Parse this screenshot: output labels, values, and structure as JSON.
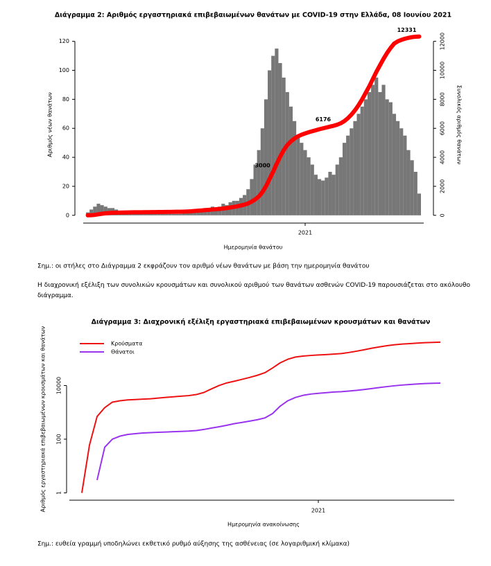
{
  "chart_data": [
    {
      "type": "bar",
      "title": "Διάγραμμα 2: Αριθμός εργαστηριακά επιβεβαιωμένων θανάτων με COVID-19 στην Ελλάδα, 08 Ιουνίου 2021",
      "x_label": "Ημερομηνία θανάτου",
      "y_label": "Αριθμός νέων θανάτων",
      "y2_label": "Συνολικός αριθμός θανάτων",
      "categories": [
        null,
        null,
        null,
        null,
        null,
        null,
        null,
        null,
        null,
        null,
        null,
        null,
        null,
        null,
        null,
        null,
        null,
        null,
        null,
        null,
        null,
        null,
        null,
        null,
        null,
        null,
        null,
        null,
        null,
        null,
        null,
        null,
        null,
        null,
        null,
        null,
        null,
        null,
        null,
        null,
        null,
        null,
        null,
        null,
        null,
        null,
        null,
        null,
        null,
        null,
        null,
        null,
        null,
        null,
        null,
        null,
        null,
        null,
        null,
        null,
        null,
        "2021",
        null,
        null,
        null,
        null,
        null,
        null,
        null,
        null,
        null,
        null,
        null,
        null,
        null,
        null,
        null,
        null,
        null,
        null,
        null,
        null,
        null,
        null,
        null,
        null,
        null,
        null,
        null,
        null,
        null,
        null,
        null,
        null
      ],
      "series": [
        {
          "type": "bar",
          "color": "#777777",
          "values": [
            2,
            4,
            6,
            8,
            7,
            6,
            5,
            5,
            4,
            3,
            3,
            2,
            2,
            2,
            1,
            1,
            1,
            1,
            1,
            1,
            1,
            1,
            1,
            1,
            1,
            1,
            1,
            2,
            2,
            3,
            3,
            3,
            4,
            5,
            4,
            6,
            5,
            6,
            8,
            7,
            9,
            10,
            10,
            12,
            14,
            18,
            25,
            35,
            45,
            60,
            80,
            100,
            110,
            115,
            105,
            95,
            85,
            75,
            65,
            55,
            50,
            45,
            40,
            35,
            28,
            25,
            24,
            26,
            30,
            28,
            35,
            40,
            50,
            55,
            60,
            65,
            70,
            75,
            80,
            85,
            90,
            95,
            85,
            90,
            80,
            78,
            70,
            65,
            60,
            55,
            45,
            38,
            30,
            15
          ]
        },
        {
          "type": "line",
          "axis": "y2",
          "color": "#ff0000",
          "values": [
            0,
            10,
            30,
            70,
            110,
            140,
            160,
            175,
            185,
            190,
            195,
            200,
            205,
            210,
            212,
            215,
            217,
            220,
            222,
            225,
            228,
            230,
            233,
            236,
            240,
            245,
            250,
            255,
            265,
            280,
            300,
            320,
            340,
            360,
            380,
            400,
            420,
            440,
            470,
            500,
            540,
            580,
            620,
            680,
            740,
            820,
            950,
            1100,
            1300,
            1600,
            2000,
            2500,
            3000,
            3550,
            4050,
            4500,
            4850,
            5100,
            5300,
            5450,
            5560,
            5650,
            5730,
            5800,
            5870,
            5940,
            6000,
            6060,
            6120,
            6176,
            6250,
            6350,
            6500,
            6700,
            6950,
            7250,
            7600,
            8000,
            8450,
            8900,
            9400,
            9900,
            10350,
            10800,
            11200,
            11550,
            11850,
            12000,
            12100,
            12180,
            12240,
            12290,
            12320,
            12331
          ],
          "value_labels": [
            null,
            null,
            null,
            null,
            null,
            null,
            null,
            null,
            null,
            null,
            null,
            null,
            null,
            null,
            null,
            null,
            null,
            null,
            null,
            null,
            null,
            null,
            null,
            null,
            null,
            null,
            null,
            null,
            null,
            null,
            null,
            null,
            null,
            null,
            null,
            null,
            null,
            null,
            null,
            null,
            null,
            null,
            null,
            null,
            null,
            null,
            null,
            null,
            null,
            null,
            null,
            null,
            "3000",
            null,
            null,
            null,
            null,
            null,
            null,
            null,
            null,
            null,
            null,
            null,
            null,
            null,
            null,
            null,
            null,
            "6176",
            null,
            null,
            null,
            null,
            null,
            null,
            null,
            null,
            null,
            null,
            null,
            null,
            null,
            null,
            null,
            null,
            null,
            null,
            null,
            null,
            null,
            null,
            null,
            "12331"
          ]
        }
      ],
      "ylim": [
        -2,
        127
      ],
      "yticks": [
        0,
        20,
        40,
        60,
        80,
        100,
        120
      ],
      "y2lim": [
        -200,
        12700
      ],
      "y2ticks": [
        0,
        2000,
        4000,
        6000,
        8000,
        10000,
        12000
      ],
      "grid": false
    },
    {
      "type": "line",
      "title": "Διάγραμμα 3: Διαχρονική εξέλιξη εργαστηριακά επιβεβαιωμένων κρουσμάτων και θανάτων",
      "x_label": "Ημερομηνία ανακοίνωσης",
      "y_label": "Αριθμός εργαστηριακά επιβεβαιωμένων κρουσμάτων και θανάτων",
      "categories": [
        null,
        null,
        null,
        null,
        null,
        null,
        null,
        null,
        null,
        null,
        null,
        null,
        null,
        null,
        null,
        null,
        null,
        null,
        null,
        null,
        null,
        null,
        null,
        null,
        null,
        null,
        null,
        null,
        null,
        null,
        null,
        "2021",
        null,
        null,
        null,
        null,
        null,
        null,
        null,
        null,
        null,
        null,
        null,
        null,
        null,
        null,
        null,
        null
      ],
      "series": [
        {
          "name": "Κρούσματα",
          "color": "#ee1111",
          "values": [
            1,
            60,
            700,
            1500,
            2400,
            2700,
            2900,
            3000,
            3100,
            3200,
            3400,
            3600,
            3800,
            4000,
            4200,
            4600,
            5500,
            7500,
            10000,
            12500,
            14500,
            17000,
            20000,
            24000,
            30000,
            45000,
            70000,
            95000,
            115000,
            125000,
            132000,
            138000,
            142000,
            148000,
            155000,
            170000,
            190000,
            215000,
            245000,
            275000,
            305000,
            330000,
            350000,
            365000,
            380000,
            395000,
            405000,
            412000
          ]
        },
        {
          "name": "Θάνατοι",
          "color": "#9933ee",
          "values": [
            null,
            null,
            3,
            50,
            100,
            130,
            150,
            160,
            170,
            175,
            180,
            185,
            190,
            195,
            200,
            210,
            230,
            260,
            290,
            330,
            380,
            420,
            470,
            530,
            620,
            900,
            1700,
            2700,
            3600,
            4300,
            4800,
            5100,
            5400,
            5700,
            5900,
            6200,
            6600,
            7100,
            7700,
            8400,
            9100,
            9800,
            10400,
            10900,
            11400,
            11800,
            12100,
            12331
          ]
        }
      ],
      "ylog": true,
      "ylim": [
        0.6,
        1000000
      ],
      "yticks": [
        1,
        100,
        10000
      ],
      "legend": "top-left",
      "grid": false
    }
  ],
  "notes": {
    "note_1": "Σημ.: οι στήλες στο Διάγραμμα 2 εκφράζουν τον αριθμό νέων θανάτων με βάση την ημερομηνία θανάτου",
    "paragraph": "Η διαχρονική εξέλιξη των συνολικών κρουσμάτων και συνολικού αριθμού των θανάτων ασθενών COVID-19 παρουσιάζεται στο ακόλουθο διάγραμμα.",
    "note_2": "Σημ.: ευθεία γραμμή υποδηλώνει εκθετικό ρυθμό αύξησης της ασθένειας (σε λογαριθμική κλίμακα)"
  }
}
